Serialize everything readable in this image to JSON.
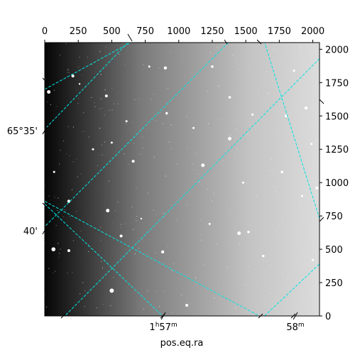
{
  "chart_data": {
    "type": "image",
    "xlabel": "pos.eq.ra",
    "pixel_axes": {
      "x": {
        "range": [
          0,
          2050
        ],
        "ticks": [
          0,
          250,
          500,
          750,
          1000,
          1250,
          1500,
          1750,
          2000
        ],
        "labels": [
          "0",
          "250",
          "500",
          "750",
          "1000",
          "1250",
          "1500",
          "1750",
          "2000"
        ]
      },
      "y": {
        "range": [
          0,
          2050
        ],
        "ticks": [
          0,
          250,
          500,
          750,
          1000,
          1250,
          1500,
          1750,
          2000
        ],
        "labels": [
          "0",
          "250",
          "500",
          "750",
          "1000",
          "1250",
          "1500",
          "1750",
          "2000"
        ]
      }
    },
    "world_axes": {
      "ra": {
        "ticks": [
          {
            "label_main": "1",
            "label_sup1": "h",
            "label_num": "57",
            "label_sup2": "m",
            "x": 885
          },
          {
            "label_main": "58",
            "label_sup1": "m",
            "label_num": "",
            "label_sup2": "",
            "x": 1870
          }
        ]
      },
      "dec": {
        "ticks": [
          {
            "label": "65°35'",
            "y": 1390
          },
          {
            "label": "40'",
            "y": 640
          }
        ]
      }
    },
    "grid": {
      "color": "#00e5e5",
      "style": "dashed",
      "lines": [
        [
          [
            620,
            2050
          ],
          [
            0,
            1400
          ]
        ],
        [
          [
            1370,
            2050
          ],
          [
            0,
            670
          ]
        ],
        [
          [
            2050,
            1930
          ],
          [
            150,
            0
          ]
        ],
        [
          [
            0,
            840
          ],
          [
            880,
            0
          ]
        ],
        [
          [
            0,
            1700
          ],
          [
            640,
            2050
          ]
        ],
        [
          [
            0,
            860
          ],
          [
            1600,
            0
          ]
        ],
        [
          [
            2050,
            730
          ],
          [
            1640,
            2050
          ]
        ],
        [
          [
            1640,
            0
          ],
          [
            2050,
            390
          ]
        ]
      ]
    },
    "image": {
      "background_gradient": {
        "direction": "left-to-right",
        "colors": [
          "#050505",
          "#7a7a7a",
          "#c4c4c4",
          "#dcdcdc"
        ]
      },
      "stars": [
        [
          30,
          1680,
          2.5
        ],
        [
          70,
          1080,
          1.5
        ],
        [
          210,
          1800,
          2.0
        ],
        [
          460,
          1650,
          2.0
        ],
        [
          500,
          1300,
          1.5
        ],
        [
          180,
          860,
          2.2
        ],
        [
          470,
          790,
          2.5
        ],
        [
          570,
          600,
          2.0
        ],
        [
          65,
          500,
          2.8
        ],
        [
          180,
          490,
          2.0
        ],
        [
          260,
          1740,
          1.2
        ],
        [
          360,
          1250,
          1.5
        ],
        [
          610,
          1460,
          1.5
        ],
        [
          660,
          1160,
          2.0
        ],
        [
          720,
          730,
          1.2
        ],
        [
          780,
          1870,
          1.5
        ],
        [
          900,
          1860,
          2.2
        ],
        [
          910,
          1520,
          1.8
        ],
        [
          1180,
          1130,
          2.5
        ],
        [
          1250,
          1870,
          1.8
        ],
        [
          1230,
          690,
          1.5
        ],
        [
          1380,
          1330,
          2.5
        ],
        [
          1480,
          1000,
          1.5
        ],
        [
          1550,
          1510,
          1.6
        ],
        [
          1800,
          1500,
          1.8
        ],
        [
          1950,
          1560,
          2.2
        ],
        [
          1770,
          1080,
          1.8
        ],
        [
          1920,
          900,
          1.5
        ],
        [
          2030,
          960,
          2.0
        ],
        [
          1520,
          630,
          1.8
        ],
        [
          1450,
          620,
          2.5
        ],
        [
          880,
          480,
          2.2
        ],
        [
          500,
          190,
          3.0
        ],
        [
          1060,
          80,
          2.0
        ],
        [
          1630,
          450,
          1.8
        ],
        [
          2000,
          420,
          1.5
        ],
        [
          1860,
          1840,
          1.6
        ],
        [
          1990,
          1290,
          1.5
        ],
        [
          1110,
          1410,
          1.5
        ],
        [
          1380,
          1640,
          1.8
        ]
      ]
    }
  }
}
